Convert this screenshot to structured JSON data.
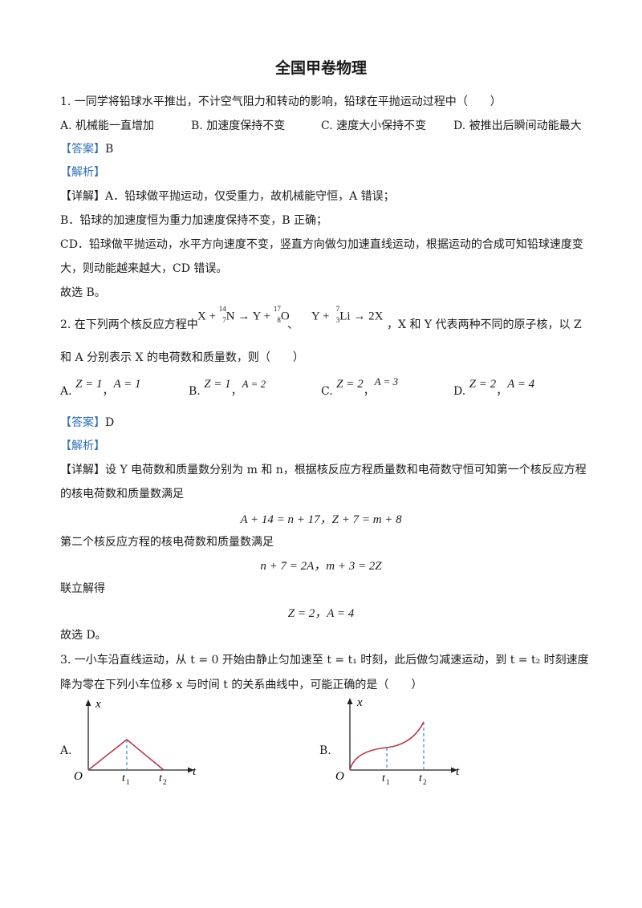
{
  "title": "全国甲卷物理",
  "q1": {
    "stem": "1. 一同学将铅球水平推出，不计空气阻力和转动的影响，铅球在平抛运动过程中（　　）",
    "options": [
      "A. 机械能一直增加",
      "B. 加速度保持不变",
      "C. 速度大小保持不变",
      "D. 被推出后瞬间动能最大"
    ],
    "answer_label": "【答案】",
    "answer": "B",
    "analysis_label": "【解析】",
    "detail_label": "【详解】",
    "detail_lines": [
      "A．铅球做平抛运动，仅受重力，故机械能守恒，A 错误；",
      "B．铅球的加速度恒为重力加速度保持不变，B 正确；",
      "CD．铅球做平抛运动，水平方向速度不变，竖直方向做匀加速直线运动，根据运动的合成可知铅球速度变",
      "大，则动能越来越大，CD 错误。",
      "故选 B。"
    ]
  },
  "q2": {
    "stem_a": "2. 在下列两个核反应方程中",
    "eq1_plus": "X +",
    "eq1_n_sup": "14",
    "eq1_n_sub": "7",
    "eq1_n": "N → Y +",
    "eq1_o_sup": "17",
    "eq1_o_sub": "8",
    "eq1_o": "O",
    "sep": "、",
    "eq2_plus": "Y +",
    "eq2_li_sup": "7",
    "eq2_li_sub": "3",
    "eq2_li": "Li → 2X",
    "stem_b": "，X 和 Y 代表两种不同的原子核，以 Z",
    "stem_c": "和 A 分别表示 X 的电荷数和质量数，则（　　）",
    "options": [
      {
        "label": "A.",
        "z": "Z = 1",
        "a": "A = 1"
      },
      {
        "label": "B.",
        "z": "Z = 1",
        "a": "A = 2"
      },
      {
        "label": "C.",
        "z": "Z = 2",
        "a": "A = 3"
      },
      {
        "label": "D.",
        "z": "Z = 2",
        "a": "A = 4"
      }
    ],
    "answer_label": "【答案】",
    "answer": "D",
    "analysis_label": "【解析】",
    "detail_label": "【详解】",
    "detail_1": "设 Y 电荷数和质量数分别为 m 和 n，根据核反应方程质量数和电荷数守恒可知第一个核反应方程",
    "detail_2": "的核电荷数和质量数满足",
    "eq_a": "A + 14 = n + 17，Z + 7 = m + 8",
    "detail_3": "第二个核反应方程的核电荷数和质量数满足",
    "eq_b": "n + 7 = 2A，m + 3 = 2Z",
    "detail_4": "联立解得",
    "eq_c": "Z = 2，A = 4",
    "detail_5": "故选 D。"
  },
  "q3": {
    "stem_1": "3. 一小车沿直线运动，从 t = 0 开始由静止匀加速至 t = t₁ 时刻，此后做匀减速运动，到 t = t₂ 时刻速度",
    "stem_2": "降为零在下列小车位移 x 与时间 t 的关系曲线中，可能正确的是（　　）",
    "graph_a": {
      "label": "A.",
      "y_axis": "x",
      "x_axis": "t",
      "origin": "O",
      "t1": "t",
      "t1_sub": "1",
      "t2": "t",
      "t2_sub": "2"
    },
    "graph_b": {
      "label": "B.",
      "y_axis": "x",
      "x_axis": "t",
      "origin": "O",
      "t1": "t",
      "t1_sub": "1",
      "t2": "t",
      "t2_sub": "2"
    },
    "colors": {
      "curve": "#b5384a",
      "dash": "#3a8fd0",
      "axis": "#222222"
    }
  }
}
